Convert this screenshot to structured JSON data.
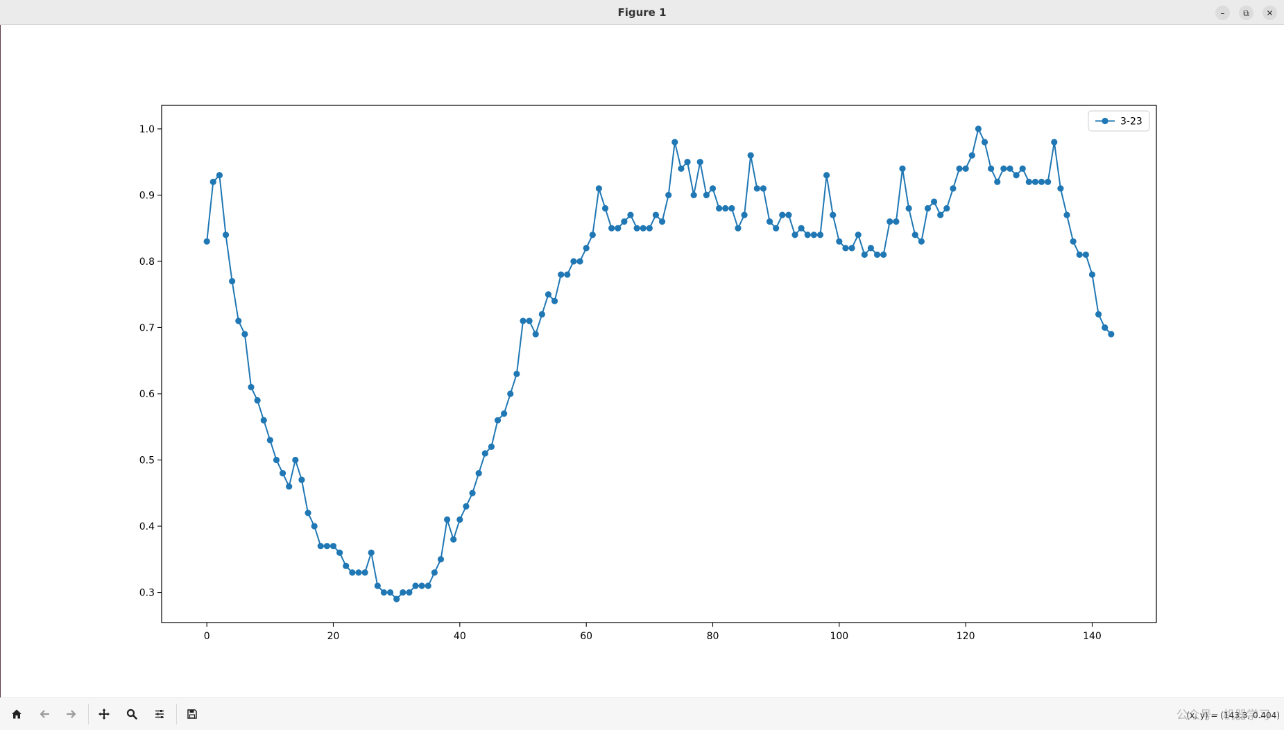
{
  "window": {
    "title": "Figure 1",
    "minimize_glyph": "–",
    "restore_glyph": "⧉",
    "close_glyph": "✕"
  },
  "toolbar": {
    "icons": [
      "home-icon",
      "back-arrow-icon",
      "forward-arrow-icon",
      "pan-icon",
      "zoom-icon",
      "configure-subplots-icon",
      "save-icon"
    ],
    "coord_readout": "(x, y) = (143.3, 0.404)",
    "watermark": "公众号 · 机器学习"
  },
  "chart_data": {
    "type": "line",
    "marker": "circle",
    "color": "#1f77b4",
    "xlim": [
      -7.15,
      150.15
    ],
    "ylim": [
      0.2545,
      1.0355
    ],
    "x_ticks": [
      0,
      20,
      40,
      60,
      80,
      100,
      120,
      140
    ],
    "y_ticks": [
      "0.3",
      "0.4",
      "0.5",
      "0.6",
      "0.7",
      "0.8",
      "0.9",
      "1.0"
    ],
    "legend_placement": "top-right",
    "grid": false,
    "series": [
      {
        "name": "3-23",
        "values": [
          0.83,
          0.92,
          0.93,
          0.84,
          0.77,
          0.71,
          0.69,
          0.61,
          0.59,
          0.56,
          0.53,
          0.5,
          0.48,
          0.46,
          0.5,
          0.47,
          0.42,
          0.4,
          0.37,
          0.37,
          0.37,
          0.36,
          0.34,
          0.33,
          0.33,
          0.33,
          0.36,
          0.31,
          0.3,
          0.3,
          0.29,
          0.3,
          0.3,
          0.31,
          0.31,
          0.31,
          0.33,
          0.35,
          0.41,
          0.38,
          0.41,
          0.43,
          0.45,
          0.48,
          0.51,
          0.52,
          0.56,
          0.57,
          0.6,
          0.63,
          0.71,
          0.71,
          0.69,
          0.72,
          0.75,
          0.74,
          0.78,
          0.78,
          0.8,
          0.8,
          0.82,
          0.84,
          0.91,
          0.88,
          0.85,
          0.85,
          0.86,
          0.87,
          0.85,
          0.85,
          0.85,
          0.87,
          0.86,
          0.9,
          0.98,
          0.94,
          0.95,
          0.9,
          0.95,
          0.9,
          0.91,
          0.88,
          0.88,
          0.88,
          0.85,
          0.87,
          0.96,
          0.91,
          0.91,
          0.86,
          0.85,
          0.87,
          0.87,
          0.84,
          0.85,
          0.84,
          0.84,
          0.84,
          0.93,
          0.87,
          0.83,
          0.82,
          0.82,
          0.84,
          0.81,
          0.82,
          0.81,
          0.81,
          0.86,
          0.86,
          0.94,
          0.88,
          0.84,
          0.83,
          0.88,
          0.89,
          0.87,
          0.88,
          0.91,
          0.94,
          0.94,
          0.96,
          1.0,
          0.98,
          0.94,
          0.92,
          0.94,
          0.94,
          0.93,
          0.94,
          0.92,
          0.92,
          0.92,
          0.92,
          0.98,
          0.91,
          0.87,
          0.83,
          0.81,
          0.81,
          0.78,
          0.72,
          0.7,
          0.69
        ]
      }
    ]
  }
}
